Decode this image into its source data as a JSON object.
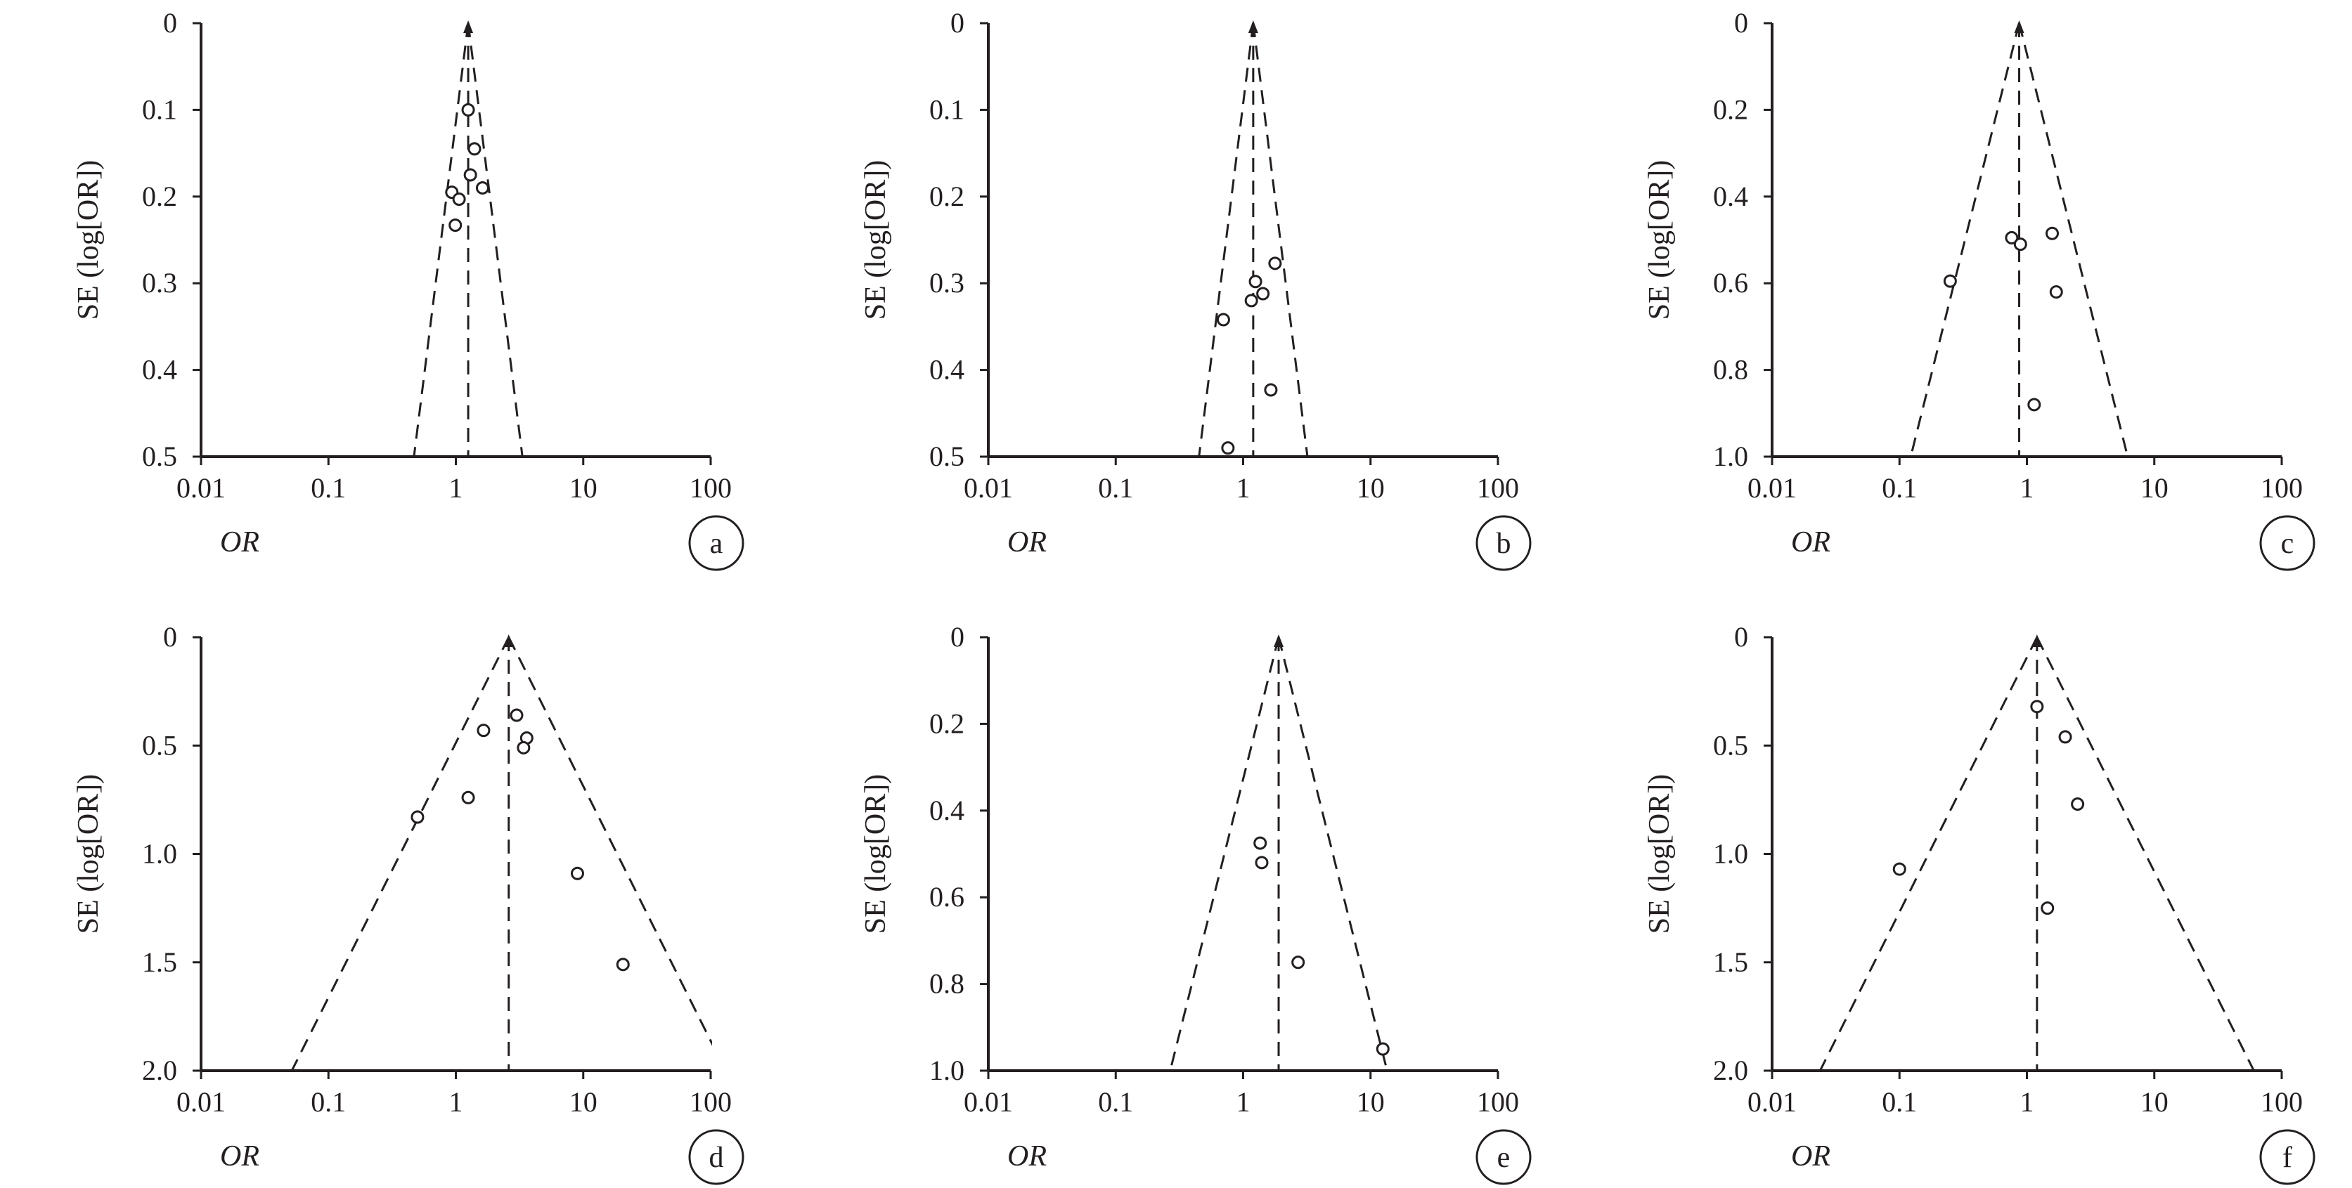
{
  "chart_data": [
    {
      "panel": "a",
      "type": "scatter",
      "subtype": "funnel",
      "xlabel": "OR",
      "ylabel": "SE (log[OR])",
      "x_scale": "log",
      "xlim": [
        0.01,
        100
      ],
      "x_ticks": [
        "0.01",
        "0.1",
        "1",
        "10",
        "100"
      ],
      "ylim": [
        0,
        0.5
      ],
      "y_inverted": true,
      "y_ticks": [
        "0",
        "0.1",
        "0.2",
        "0.3",
        "0.4",
        "0.5"
      ],
      "pooled_or": 1.25,
      "points": [
        {
          "or": 1.25,
          "se": 0.1
        },
        {
          "or": 1.4,
          "se": 0.145
        },
        {
          "or": 1.3,
          "se": 0.175
        },
        {
          "or": 1.62,
          "se": 0.19
        },
        {
          "or": 0.93,
          "se": 0.195
        },
        {
          "or": 1.06,
          "se": 0.203
        },
        {
          "or": 0.99,
          "se": 0.233
        }
      ]
    },
    {
      "panel": "b",
      "type": "scatter",
      "subtype": "funnel",
      "xlabel": "OR",
      "ylabel": "SE (log[OR])",
      "x_scale": "log",
      "xlim": [
        0.01,
        100
      ],
      "x_ticks": [
        "0.01",
        "0.1",
        "1",
        "10",
        "100"
      ],
      "ylim": [
        0,
        0.5
      ],
      "y_inverted": true,
      "y_ticks": [
        "0",
        "0.1",
        "0.2",
        "0.3",
        "0.4",
        "0.5"
      ],
      "pooled_or": 1.2,
      "points": [
        {
          "or": 1.78,
          "se": 0.277
        },
        {
          "or": 1.25,
          "se": 0.298
        },
        {
          "or": 1.43,
          "se": 0.312
        },
        {
          "or": 1.16,
          "se": 0.32
        },
        {
          "or": 0.7,
          "se": 0.342
        },
        {
          "or": 1.65,
          "se": 0.423
        },
        {
          "or": 0.76,
          "se": 0.49
        }
      ]
    },
    {
      "panel": "c",
      "type": "scatter",
      "subtype": "funnel",
      "xlabel": "OR",
      "ylabel": "SE (log[OR])",
      "x_scale": "log",
      "xlim": [
        0.01,
        100
      ],
      "x_ticks": [
        "0.01",
        "0.1",
        "1",
        "10",
        "100"
      ],
      "ylim": [
        0,
        1.0
      ],
      "y_inverted": true,
      "y_ticks": [
        "0",
        "0.2",
        "0.4",
        "0.6",
        "0.8",
        "1.0"
      ],
      "pooled_or": 0.87,
      "points": [
        {
          "or": 1.58,
          "se": 0.485
        },
        {
          "or": 0.76,
          "se": 0.495
        },
        {
          "or": 0.89,
          "se": 0.51
        },
        {
          "or": 0.25,
          "se": 0.595
        },
        {
          "or": 1.7,
          "se": 0.62
        },
        {
          "or": 1.14,
          "se": 0.88
        }
      ]
    },
    {
      "panel": "d",
      "type": "scatter",
      "subtype": "funnel",
      "xlabel": "OR",
      "ylabel": "SE (log[OR])",
      "x_scale": "log",
      "xlim": [
        0.01,
        100
      ],
      "x_ticks": [
        "0.01",
        "0.1",
        "1",
        "10",
        "100"
      ],
      "ylim": [
        0,
        2.0
      ],
      "y_inverted": true,
      "y_ticks": [
        "0",
        "0.5",
        "1.0",
        "1.5",
        "2.0"
      ],
      "pooled_or": 2.6,
      "points": [
        {
          "or": 3.0,
          "se": 0.36
        },
        {
          "or": 1.65,
          "se": 0.43
        },
        {
          "or": 3.6,
          "se": 0.465
        },
        {
          "or": 3.4,
          "se": 0.51
        },
        {
          "or": 1.25,
          "se": 0.74
        },
        {
          "or": 0.5,
          "se": 0.83
        },
        {
          "or": 9.0,
          "se": 1.09
        },
        {
          "or": 20.5,
          "se": 1.51
        }
      ]
    },
    {
      "panel": "e",
      "type": "scatter",
      "subtype": "funnel",
      "xlabel": "OR",
      "ylabel": "SE (log[OR])",
      "x_scale": "log",
      "xlim": [
        0.01,
        100
      ],
      "x_ticks": [
        "0.01",
        "0.1",
        "1",
        "10",
        "100"
      ],
      "ylim": [
        0,
        1.0
      ],
      "y_inverted": true,
      "y_ticks": [
        "0",
        "0.2",
        "0.4",
        "0.6",
        "0.8",
        "1.0"
      ],
      "pooled_or": 1.9,
      "points": [
        {
          "or": 1.36,
          "se": 0.475
        },
        {
          "or": 1.4,
          "se": 0.52
        },
        {
          "or": 2.7,
          "se": 0.75
        },
        {
          "or": 12.5,
          "se": 0.95
        }
      ]
    },
    {
      "panel": "f",
      "type": "scatter",
      "subtype": "funnel",
      "xlabel": "OR",
      "ylabel": "SE (log[OR])",
      "x_scale": "log",
      "xlim": [
        0.01,
        100
      ],
      "x_ticks": [
        "0.01",
        "0.1",
        "1",
        "10",
        "100"
      ],
      "ylim": [
        0,
        2.0
      ],
      "y_inverted": true,
      "y_ticks": [
        "0",
        "0.5",
        "1.0",
        "1.5",
        "2.0"
      ],
      "pooled_or": 1.2,
      "points": [
        {
          "or": 1.2,
          "se": 0.32
        },
        {
          "or": 2.0,
          "se": 0.46
        },
        {
          "or": 2.5,
          "se": 0.77
        },
        {
          "or": 0.1,
          "se": 1.07
        },
        {
          "or": 1.45,
          "se": 1.25
        }
      ]
    }
  ]
}
